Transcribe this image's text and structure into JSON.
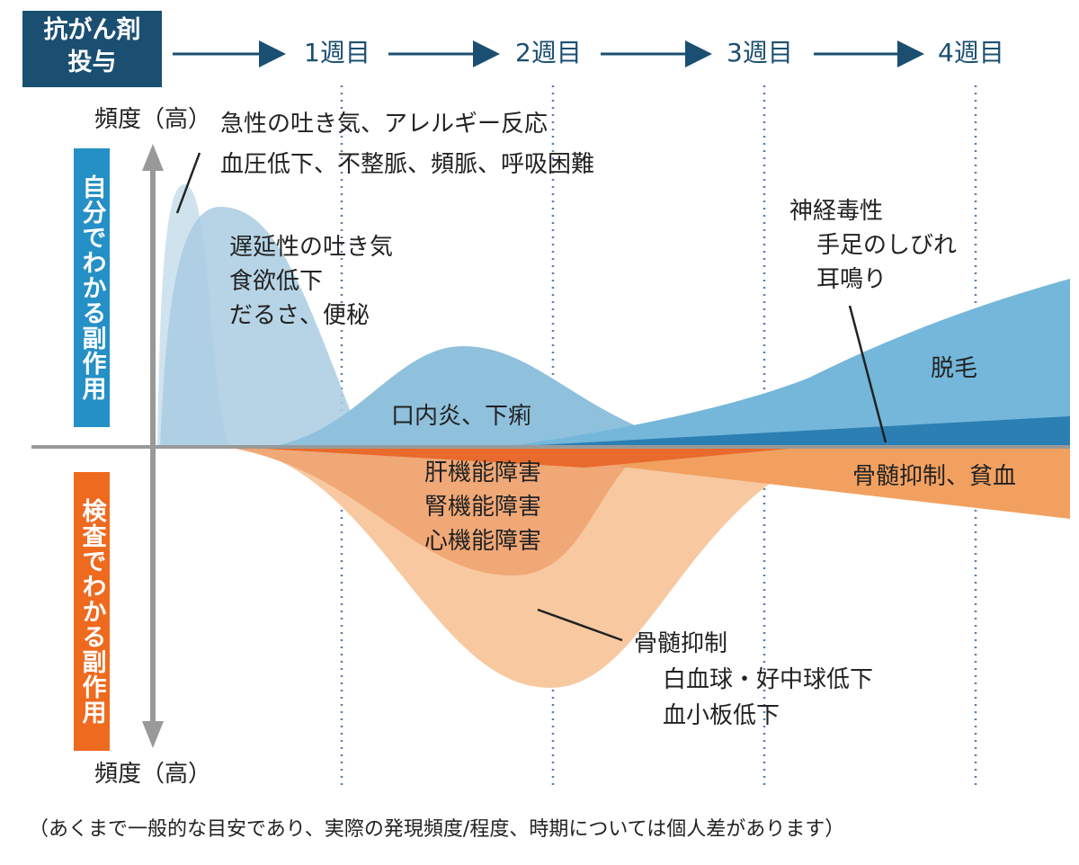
{
  "start_label": [
    "抗がん剤",
    "投与"
  ],
  "weeks": [
    "1週目",
    "2週目",
    "3週目",
    "4週目"
  ],
  "axis": {
    "top_label": "頻度（高）",
    "bottom_label": "頻度（高）"
  },
  "upper_label": "自分でわかる副作用",
  "lower_label": "検査でわかる副作用",
  "annotations": {
    "acute": [
      "急性の吐き気、アレルギー反応",
      "血圧低下、不整脈、頻脈、呼吸困難"
    ],
    "delayed": [
      "遅延性の吐き気",
      "食欲低下",
      "だるさ、便秘"
    ],
    "stomatitis": [
      "口内炎、下痢"
    ],
    "neuro": [
      "神経毒性",
      "手足のしびれ",
      "耳鳴り"
    ],
    "hair": [
      "脱毛"
    ],
    "organ": [
      "肝機能障害",
      "腎機能障害",
      "心機能障害"
    ],
    "anemia": [
      "骨髄抑制、貧血"
    ],
    "marrow": [
      "骨髄抑制",
      "白血球・好中球低下",
      "血小板低下"
    ]
  },
  "footnote": "（あくまで一般的な目安であり、実際の発現頻度/程度、時期については個人差があります）"
}
